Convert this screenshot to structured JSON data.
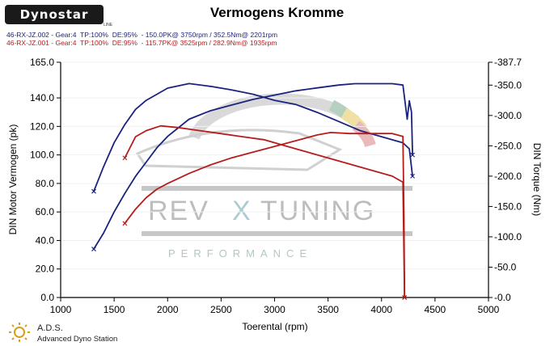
{
  "brand": {
    "logo_text": "Dynostar",
    "logo_subtext": "LINE"
  },
  "watermark": {
    "main_left": "REV",
    "main_x": "X",
    "main_right": "TUNING",
    "sub": "PERFORMANCE"
  },
  "footer": {
    "title": "A.D.S.",
    "subtitle": "Advanced Dyno Station"
  },
  "legend": {
    "run1": "46-RX-JZ.002 - Gear:4  TP:100%  DE:95%  - 150.0PK@ 3750rpm / 352.5Nm@ 2201rpm",
    "run2": "46-RX-JZ.001 - Gear:4  TP:100%  DE:95%  - 115.7PK@ 3525rpm / 282.9Nm@ 1935rpm"
  },
  "colors": {
    "run1": "#1a237e",
    "run2": "#b71c1c",
    "axis": "#000000",
    "grid": "#f1f1f1"
  },
  "chart_data": {
    "type": "line",
    "title": "Vermogens Kromme",
    "xlabel": "Toerental (rpm)",
    "ylabel": "DIN Motor Vermogen (pk)",
    "y2label": "DIN Torque (Nm)",
    "xlim": [
      1000,
      5000
    ],
    "ylim": [
      0,
      165
    ],
    "y2lim": [
      0,
      387.7
    ],
    "x_ticks": [
      1000,
      1500,
      2000,
      2500,
      3000,
      3500,
      4000,
      4500,
      5000
    ],
    "y_ticks": [
      "0.0",
      "20.0",
      "40.0",
      "60.0",
      "80.0",
      "100.0",
      "120.0",
      "140.0",
      "165.0"
    ],
    "y_tick_values": [
      0,
      20,
      40,
      60,
      80,
      100,
      120,
      140,
      165
    ],
    "y2_ticks": [
      "0.0",
      "50.0",
      "100.0",
      "150.0",
      "200.0",
      "250.0",
      "300.0",
      "350.0",
      "387.7"
    ],
    "y2_tick_values": [
      0,
      50,
      100,
      150,
      200,
      250,
      300,
      350,
      387.7
    ],
    "grid": false,
    "series": [
      {
        "run": "run1",
        "quantity": "power",
        "axis": "left",
        "x": [
          1310,
          1400,
          1500,
          1600,
          1700,
          1800,
          1900,
          2000,
          2200,
          2400,
          2600,
          2800,
          3000,
          3200,
          3400,
          3600,
          3750,
          3900,
          4100,
          4200,
          4240,
          4260,
          4280,
          4290
        ],
        "y": [
          34,
          45,
          60,
          73,
          85,
          95,
          105,
          113,
          125,
          131,
          135,
          139,
          142,
          145,
          147,
          149,
          150,
          150,
          150,
          149,
          125,
          138,
          130,
          100
        ]
      },
      {
        "run": "run1",
        "quantity": "torque",
        "axis": "right",
        "x": [
          1310,
          1400,
          1500,
          1600,
          1700,
          1800,
          1900,
          2000,
          2201,
          2400,
          2600,
          2800,
          3000,
          3200,
          3400,
          3600,
          3800,
          4000,
          4200,
          4260,
          4290
        ],
        "y": [
          175,
          215,
          255,
          285,
          310,
          325,
          335,
          345,
          352.5,
          348,
          342,
          335,
          325,
          318,
          305,
          290,
          275,
          265,
          255,
          245,
          200
        ]
      },
      {
        "run": "run2",
        "quantity": "power",
        "axis": "left",
        "x": [
          1600,
          1700,
          1800,
          1900,
          2000,
          2200,
          2400,
          2600,
          2800,
          3000,
          3200,
          3400,
          3525,
          3700,
          3900,
          4100,
          4200,
          4210,
          4215
        ],
        "y": [
          52,
          62,
          70,
          76,
          80,
          87,
          93,
          98,
          102,
          106,
          110,
          114,
          115.7,
          115,
          115,
          115,
          113,
          55,
          0
        ]
      },
      {
        "run": "run2",
        "quantity": "torque",
        "axis": "right",
        "x": [
          1600,
          1700,
          1800,
          1935,
          2100,
          2300,
          2500,
          2700,
          2900,
          3100,
          3300,
          3500,
          3700,
          3900,
          4100,
          4200,
          4215
        ],
        "y": [
          230,
          265,
          275,
          282.9,
          280,
          275,
          270,
          265,
          260,
          250,
          240,
          230,
          220,
          210,
          200,
          190,
          0
        ]
      }
    ]
  }
}
